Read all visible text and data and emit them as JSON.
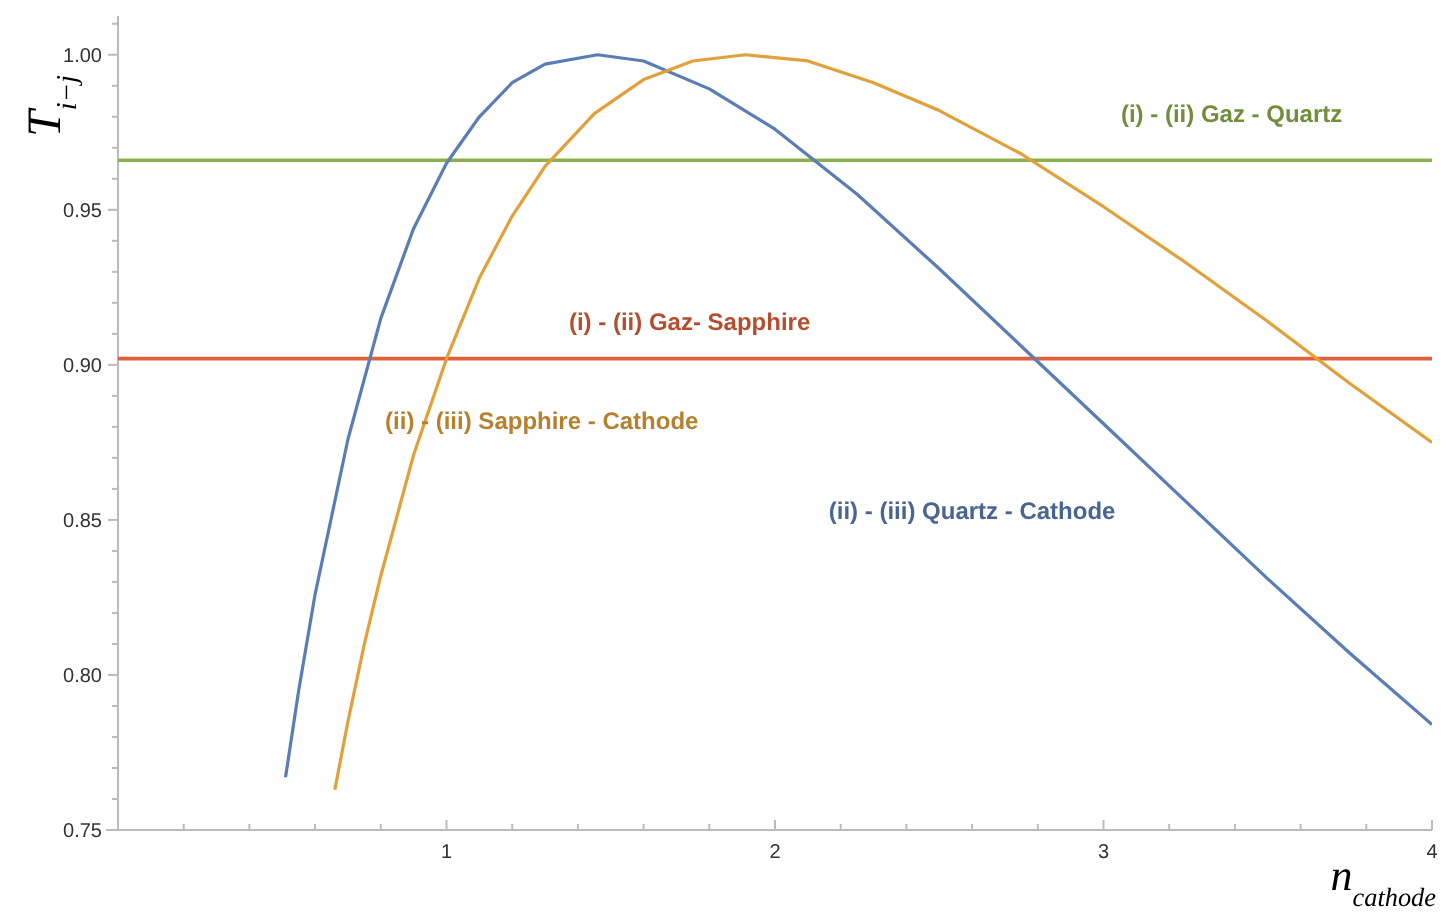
{
  "chart_data": {
    "type": "line",
    "xlabel": "n$_{cathode}$",
    "ylabel": "T$_{i−j}$",
    "xlim": [
      0,
      4
    ],
    "ylim": [
      0.75,
      1.0125
    ],
    "xticks": [
      {
        "value": 0.2,
        "label": null
      },
      {
        "value": 0.4,
        "label": null
      },
      {
        "value": 0.6,
        "label": null
      },
      {
        "value": 0.8,
        "label": null
      },
      1,
      {
        "value": 1.2,
        "label": null
      },
      {
        "value": 1.4,
        "label": null
      },
      {
        "value": 1.6,
        "label": null
      },
      {
        "value": 1.8,
        "label": null
      },
      2,
      {
        "value": 2.2,
        "label": null
      },
      {
        "value": 2.4,
        "label": null
      },
      {
        "value": 2.6,
        "label": null
      },
      {
        "value": 2.8,
        "label": null
      },
      3,
      {
        "value": 3.2,
        "label": null
      },
      {
        "value": 3.4,
        "label": null
      },
      {
        "value": 3.6,
        "label": null
      },
      {
        "value": 3.8,
        "label": null
      },
      4
    ],
    "yticks": [
      {
        "value": 0.75,
        "label": "0.75"
      },
      {
        "value": 0.76,
        "label": null
      },
      {
        "value": 0.77,
        "label": null
      },
      {
        "value": 0.78,
        "label": null
      },
      {
        "value": 0.79,
        "label": null
      },
      {
        "value": 0.8,
        "label": "0.80"
      },
      {
        "value": 0.81,
        "label": null
      },
      {
        "value": 0.82,
        "label": null
      },
      {
        "value": 0.83,
        "label": null
      },
      {
        "value": 0.84,
        "label": null
      },
      {
        "value": 0.85,
        "label": "0.85"
      },
      {
        "value": 0.86,
        "label": null
      },
      {
        "value": 0.87,
        "label": null
      },
      {
        "value": 0.88,
        "label": null
      },
      {
        "value": 0.89,
        "label": null
      },
      {
        "value": 0.9,
        "label": "0.90"
      },
      {
        "value": 0.91,
        "label": null
      },
      {
        "value": 0.92,
        "label": null
      },
      {
        "value": 0.93,
        "label": null
      },
      {
        "value": 0.94,
        "label": null
      },
      {
        "value": 0.95,
        "label": "0.95"
      },
      {
        "value": 0.96,
        "label": null
      },
      {
        "value": 0.97,
        "label": null
      },
      {
        "value": 0.98,
        "label": null
      },
      {
        "value": 0.99,
        "label": null
      },
      {
        "value": 1.0,
        "label": "1.00"
      },
      {
        "value": 1.01,
        "label": null
      }
    ],
    "grid": false,
    "marker": "none",
    "line_style": "solid",
    "ref_lines": [
      {
        "axis": "y",
        "value": 0.966,
        "color": "#8cb04a",
        "label": "(i) - (ii) Gaz - Quartz"
      },
      {
        "axis": "y",
        "value": 0.902,
        "color": "#e0603a",
        "label": "(i) - (ii) Gaz- Sapphire"
      }
    ],
    "series": [
      {
        "name": "(ii) - (iii) Quartz - Cathode",
        "color": "#5a7db5",
        "x": [
          0.51,
          0.55,
          0.6,
          0.7,
          0.8,
          0.9,
          1.0,
          1.1,
          1.2,
          1.3,
          1.46,
          1.6,
          1.8,
          2.0,
          2.25,
          2.5,
          2.75,
          3.0,
          3.25,
          3.5,
          3.75,
          4.0
        ],
        "values": [
          0.767,
          0.795,
          0.826,
          0.876,
          0.915,
          0.944,
          0.965,
          0.98,
          0.991,
          0.997,
          1.0,
          0.998,
          0.989,
          0.976,
          0.955,
          0.931,
          0.906,
          0.881,
          0.856,
          0.831,
          0.807,
          0.784
        ]
      },
      {
        "name": "(ii) - (iii) Sapphire - Cathode",
        "color": "#e1a03a",
        "x": [
          0.66,
          0.7,
          0.75,
          0.8,
          0.9,
          1.0,
          1.1,
          1.2,
          1.3,
          1.45,
          1.6,
          1.75,
          1.91,
          2.1,
          2.3,
          2.5,
          2.75,
          3.0,
          3.25,
          3.5,
          3.75,
          4.0
        ],
        "values": [
          0.763,
          0.785,
          0.81,
          0.832,
          0.871,
          0.902,
          0.928,
          0.948,
          0.964,
          0.981,
          0.992,
          0.998,
          1.0,
          0.998,
          0.991,
          0.982,
          0.968,
          0.951,
          0.933,
          0.914,
          0.894,
          0.875
        ]
      }
    ]
  }
}
